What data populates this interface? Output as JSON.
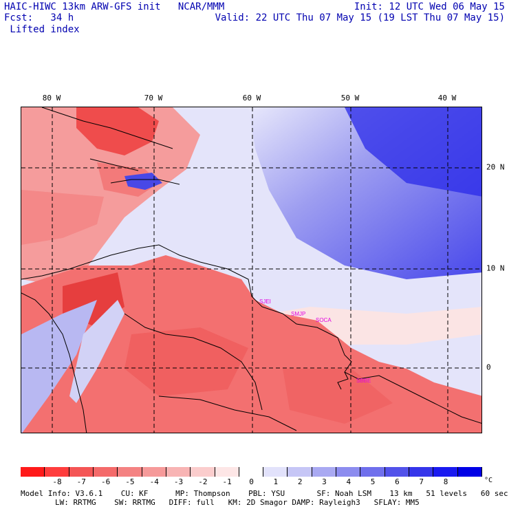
{
  "header": {
    "line1": "HAIC-HIWC 13km ARW-GFS init   NCAR/MMM",
    "line2": "Fcst:   34 h",
    "line3": " Lifted index",
    "init": "Init: 12 UTC Wed 06 May 15",
    "valid": "Valid: 22 UTC Thu 07 May 15 (19 LST Thu 07 May 15)"
  },
  "map": {
    "longitude_labels": [
      "80 W",
      "70 W",
      "60 W",
      "50 W",
      "40 W"
    ],
    "latitude_labels": [
      "20 N",
      "10 N",
      "0"
    ],
    "stations": [
      "SJEI",
      "SMJP",
      "SOCA",
      "SBBE"
    ]
  },
  "colorbar": {
    "tick_labels": [
      "-8",
      "-7",
      "-6",
      "-5",
      "-4",
      "-3",
      "-2",
      "-1",
      "0",
      "1",
      "2",
      "3",
      "4",
      "5",
      "6",
      "7",
      "8"
    ],
    "unit": "°C",
    "colors": [
      "#ff1a1a",
      "#ff3d3d",
      "#f45555",
      "#f46a6a",
      "#f48282",
      "#f69a9a",
      "#f8b4b4",
      "#fbcdcd",
      "#fde6e6",
      "#ffffff",
      "#e2e2fb",
      "#c6c6f6",
      "#a9a9f2",
      "#8c8cef",
      "#6f6fec",
      "#5252ea",
      "#3535ea",
      "#1a1af0",
      "#0000e6"
    ]
  },
  "footer": {
    "line1": "Model Info: V3.6.1    CU: KF      MP: Thompson    PBL: YSU       SF: Noah LSM    13 km   51 levels   60 sec",
    "line2": "LW: RRTMG    SW: RRTMG   DIFF: full   KM: 2D Smagor DAMP: Rayleigh3   SFLAY: MM5"
  }
}
